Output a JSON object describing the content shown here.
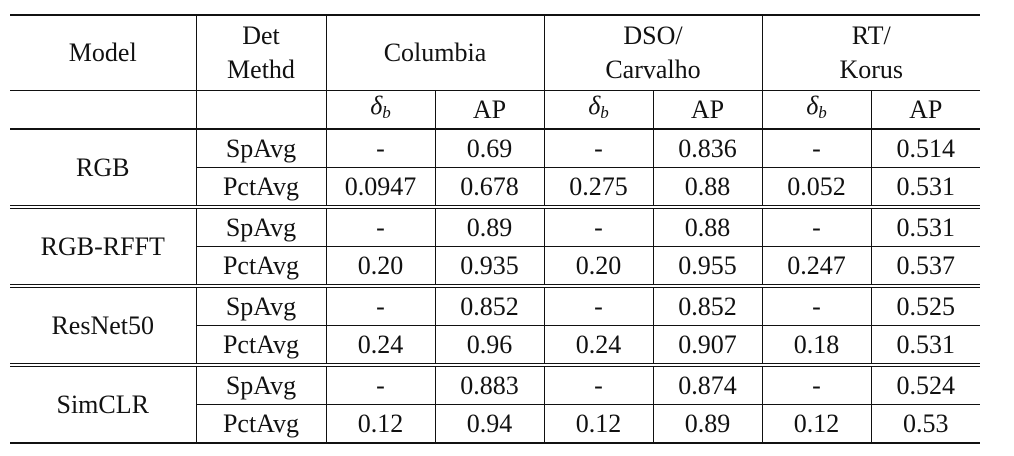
{
  "header": {
    "model": "Model",
    "det_line1": "Det",
    "det_line2": "Methd",
    "datasets": [
      {
        "line1": "Columbia",
        "line2": ""
      },
      {
        "line1": "DSO/",
        "line2": "Carvalho"
      },
      {
        "line1": "RT/",
        "line2": "Korus"
      }
    ],
    "delta_symbol": "δ",
    "delta_sub": "b",
    "ap": "AP"
  },
  "groups": [
    {
      "model": "RGB",
      "rows": [
        {
          "method": "SpAvg",
          "values": [
            "-",
            "0.69",
            "-",
            "0.836",
            "-",
            "0.514"
          ]
        },
        {
          "method": "PctAvg",
          "values": [
            "0.0947",
            "0.678",
            "0.275",
            "0.88",
            "0.052",
            "0.531"
          ]
        }
      ]
    },
    {
      "model": "RGB-RFFT",
      "rows": [
        {
          "method": "SpAvg",
          "values": [
            "-",
            "0.89",
            "-",
            "0.88",
            "-",
            "0.531"
          ]
        },
        {
          "method": "PctAvg",
          "values": [
            "0.20",
            "0.935",
            "0.20",
            "0.955",
            "0.247",
            "0.537"
          ]
        }
      ]
    },
    {
      "model": "ResNet50",
      "rows": [
        {
          "method": "SpAvg",
          "values": [
            "-",
            "0.852",
            "-",
            "0.852",
            "-",
            "0.525"
          ]
        },
        {
          "method": "PctAvg",
          "values": [
            "0.24",
            "0.96",
            "0.24",
            "0.907",
            "0.18",
            "0.531"
          ]
        }
      ]
    },
    {
      "model": "SimCLR",
      "rows": [
        {
          "method": "SpAvg",
          "values": [
            "-",
            "0.883",
            "-",
            "0.874",
            "-",
            "0.524"
          ]
        },
        {
          "method": "PctAvg",
          "values": [
            "0.12",
            "0.94",
            "0.12",
            "0.89",
            "0.12",
            "0.53"
          ]
        }
      ]
    }
  ]
}
